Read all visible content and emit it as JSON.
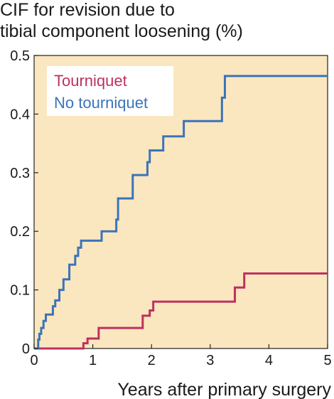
{
  "chart_data": {
    "type": "line",
    "step": true,
    "title_lines": [
      "CIF for revision due to",
      "tibial component loosening (%)"
    ],
    "xlabel": "Years after primary surgery",
    "ylabel": "",
    "xlim": [
      0,
      5
    ],
    "ylim": [
      0,
      0.5
    ],
    "xticks": [
      0,
      1,
      2,
      3,
      4,
      5
    ],
    "yticks": [
      0,
      0.1,
      0.2,
      0.3,
      0.4,
      0.5
    ],
    "xtick_labels": [
      "0",
      "1",
      "2",
      "3",
      "4",
      "5"
    ],
    "ytick_labels": [
      "0",
      "0.1",
      "0.2",
      "0.3",
      "0.4",
      "0.5"
    ],
    "grid": false,
    "legend_position": "top-left",
    "background_color": "#fbe7bf",
    "series": [
      {
        "name": "Tourniquet",
        "color": "#bf3060",
        "x": [
          0,
          0.84,
          0.84,
          0.91,
          0.91,
          1.1,
          1.1,
          1.85,
          1.85,
          1.97,
          1.97,
          2.03,
          2.03,
          3.42,
          3.42,
          3.58,
          3.58,
          5.0
        ],
        "y": [
          0,
          0,
          0.009,
          0.009,
          0.017,
          0.017,
          0.035,
          0.035,
          0.056,
          0.056,
          0.065,
          0.065,
          0.08,
          0.08,
          0.104,
          0.104,
          0.128,
          0.128
        ]
      },
      {
        "name": "No tourniquet",
        "color": "#3a74b8",
        "x": [
          0,
          0.07,
          0.07,
          0.09,
          0.09,
          0.12,
          0.12,
          0.16,
          0.16,
          0.2,
          0.2,
          0.32,
          0.32,
          0.36,
          0.36,
          0.43,
          0.43,
          0.5,
          0.5,
          0.6,
          0.6,
          0.7,
          0.7,
          0.75,
          0.75,
          0.8,
          0.8,
          1.15,
          1.15,
          1.4,
          1.4,
          1.43,
          1.43,
          1.68,
          1.68,
          1.93,
          1.93,
          1.97,
          1.97,
          2.2,
          2.2,
          2.55,
          2.55,
          3.2,
          3.2,
          3.25,
          3.25,
          5.0
        ],
        "y": [
          0,
          0,
          0.015,
          0.015,
          0.025,
          0.025,
          0.035,
          0.035,
          0.047,
          0.047,
          0.058,
          0.058,
          0.072,
          0.072,
          0.082,
          0.082,
          0.1,
          0.1,
          0.118,
          0.118,
          0.143,
          0.143,
          0.158,
          0.158,
          0.172,
          0.172,
          0.184,
          0.184,
          0.2,
          0.2,
          0.22,
          0.22,
          0.256,
          0.256,
          0.296,
          0.296,
          0.318,
          0.318,
          0.338,
          0.338,
          0.362,
          0.362,
          0.388,
          0.388,
          0.428,
          0.428,
          0.465,
          0.465
        ]
      }
    ]
  }
}
